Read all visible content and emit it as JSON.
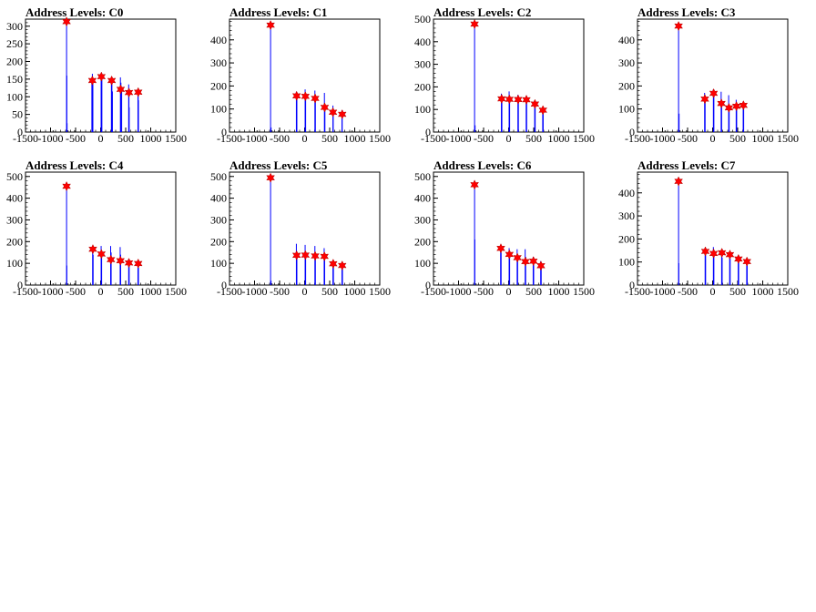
{
  "chart_data": [
    {
      "type": "histogram",
      "title": "Address Levels: C0",
      "xlim": [
        -1500,
        1500
      ],
      "ylim": [
        0,
        320
      ],
      "yticks": [
        0,
        50,
        100,
        150,
        200,
        250,
        300
      ],
      "xticks": [
        -1500,
        -1000,
        -500,
        0,
        500,
        1000,
        1500
      ],
      "xtick_labels": [
        "-1500",
        "-1000",
        "-500",
        "0",
        "500",
        "1000",
        "1500"
      ],
      "spikes": [
        {
          "x": -680,
          "y": 310
        },
        {
          "x": -675,
          "y": 160
        },
        {
          "x": -670,
          "y": 25
        },
        {
          "x": -175,
          "y": 150
        },
        {
          "x": -165,
          "y": 165
        },
        {
          "x": -155,
          "y": 145
        },
        {
          "x": 10,
          "y": 160
        },
        {
          "x": 15,
          "y": 125
        },
        {
          "x": 25,
          "y": 155
        },
        {
          "x": 215,
          "y": 150
        },
        {
          "x": 225,
          "y": 145
        },
        {
          "x": 235,
          "y": 115
        },
        {
          "x": 395,
          "y": 155
        },
        {
          "x": 405,
          "y": 140
        },
        {
          "x": 420,
          "y": 115
        },
        {
          "x": 560,
          "y": 135
        },
        {
          "x": 565,
          "y": 115
        },
        {
          "x": 570,
          "y": 70
        },
        {
          "x": 745,
          "y": 115
        },
        {
          "x": 750,
          "y": 110
        },
        {
          "x": 755,
          "y": 90
        }
      ],
      "peaks": [
        {
          "x": -680,
          "y": 313
        },
        {
          "x": -165,
          "y": 146
        },
        {
          "x": 15,
          "y": 157
        },
        {
          "x": 220,
          "y": 146
        },
        {
          "x": 400,
          "y": 121
        },
        {
          "x": 565,
          "y": 112
        },
        {
          "x": 750,
          "y": 113
        }
      ]
    },
    {
      "type": "histogram",
      "title": "Address Levels: C1",
      "xlim": [
        -1500,
        1500
      ],
      "ylim": [
        0,
        490
      ],
      "yticks": [
        0,
        100,
        200,
        300,
        400
      ],
      "xticks": [
        -1500,
        -1000,
        -500,
        0,
        500,
        1000,
        1500
      ],
      "xtick_labels": [
        "-1500",
        "-1000",
        "-500",
        "0",
        "500",
        "1000",
        "1500"
      ],
      "spikes": [
        {
          "x": -680,
          "y": 470
        },
        {
          "x": -670,
          "y": 20
        },
        {
          "x": -165,
          "y": 175
        },
        {
          "x": -155,
          "y": 150
        },
        {
          "x": 10,
          "y": 185
        },
        {
          "x": 20,
          "y": 160
        },
        {
          "x": 205,
          "y": 180
        },
        {
          "x": 215,
          "y": 150
        },
        {
          "x": 395,
          "y": 170
        },
        {
          "x": 405,
          "y": 120
        },
        {
          "x": 565,
          "y": 115
        },
        {
          "x": 570,
          "y": 90
        },
        {
          "x": 745,
          "y": 95
        },
        {
          "x": 750,
          "y": 80
        }
      ],
      "peaks": [
        {
          "x": -680,
          "y": 464
        },
        {
          "x": -160,
          "y": 157
        },
        {
          "x": 15,
          "y": 155
        },
        {
          "x": 210,
          "y": 146
        },
        {
          "x": 400,
          "y": 107
        },
        {
          "x": 565,
          "y": 86
        },
        {
          "x": 750,
          "y": 77
        }
      ]
    },
    {
      "type": "histogram",
      "title": "Address Levels: C2",
      "xlim": [
        -1500,
        1500
      ],
      "ylim": [
        0,
        500
      ],
      "yticks": [
        0,
        100,
        200,
        300,
        400,
        500
      ],
      "xticks": [
        -1500,
        -1000,
        -500,
        0,
        500,
        1000,
        1500
      ],
      "xtick_labels": [
        "-1500",
        "-1000",
        "-500",
        "0",
        "500",
        "1000",
        "1500"
      ],
      "spikes": [
        {
          "x": -680,
          "y": 490
        },
        {
          "x": -670,
          "y": 30
        },
        {
          "x": -145,
          "y": 170
        },
        {
          "x": -135,
          "y": 150
        },
        {
          "x": 10,
          "y": 180
        },
        {
          "x": 20,
          "y": 150
        },
        {
          "x": 185,
          "y": 165
        },
        {
          "x": 195,
          "y": 140
        },
        {
          "x": 350,
          "y": 160
        },
        {
          "x": 360,
          "y": 130
        },
        {
          "x": 520,
          "y": 140
        },
        {
          "x": 530,
          "y": 110
        },
        {
          "x": 680,
          "y": 110
        },
        {
          "x": 690,
          "y": 90
        }
      ],
      "peaks": [
        {
          "x": -680,
          "y": 478
        },
        {
          "x": -140,
          "y": 147
        },
        {
          "x": 15,
          "y": 145
        },
        {
          "x": 190,
          "y": 144
        },
        {
          "x": 355,
          "y": 143
        },
        {
          "x": 525,
          "y": 124
        },
        {
          "x": 685,
          "y": 97
        }
      ]
    },
    {
      "type": "histogram",
      "title": "Address Levels: C3",
      "xlim": [
        -1500,
        1500
      ],
      "ylim": [
        0,
        490
      ],
      "yticks": [
        0,
        100,
        200,
        300,
        400
      ],
      "xticks": [
        -1500,
        -1000,
        -500,
        0,
        500,
        1000,
        1500
      ],
      "xtick_labels": [
        "-1500",
        "-1000",
        "-500",
        "0",
        "500",
        "1000",
        "1500"
      ],
      "spikes": [
        {
          "x": -680,
          "y": 470
        },
        {
          "x": -670,
          "y": 80
        },
        {
          "x": -160,
          "y": 170
        },
        {
          "x": -150,
          "y": 140
        },
        {
          "x": 15,
          "y": 185
        },
        {
          "x": 25,
          "y": 160
        },
        {
          "x": 170,
          "y": 175
        },
        {
          "x": 180,
          "y": 140
        },
        {
          "x": 320,
          "y": 160
        },
        {
          "x": 330,
          "y": 120
        },
        {
          "x": 470,
          "y": 140
        },
        {
          "x": 480,
          "y": 110
        },
        {
          "x": 610,
          "y": 130
        },
        {
          "x": 620,
          "y": 100
        }
      ],
      "peaks": [
        {
          "x": -680,
          "y": 460
        },
        {
          "x": -155,
          "y": 143
        },
        {
          "x": 20,
          "y": 168
        },
        {
          "x": 175,
          "y": 124
        },
        {
          "x": 325,
          "y": 105
        },
        {
          "x": 475,
          "y": 112
        },
        {
          "x": 615,
          "y": 116
        }
      ]
    },
    {
      "type": "histogram",
      "title": "Address Levels: C4",
      "xlim": [
        -1500,
        1500
      ],
      "ylim": [
        0,
        520
      ],
      "yticks": [
        0,
        100,
        200,
        300,
        400,
        500
      ],
      "xticks": [
        -1500,
        -1000,
        -500,
        0,
        500,
        1000,
        1500
      ],
      "xtick_labels": [
        "-1500",
        "-1000",
        "-500",
        "0",
        "500",
        "1000",
        "1500"
      ],
      "spikes": [
        {
          "x": -680,
          "y": 470
        },
        {
          "x": -675,
          "y": 90
        },
        {
          "x": -160,
          "y": 170
        },
        {
          "x": -150,
          "y": 140
        },
        {
          "x": 10,
          "y": 180
        },
        {
          "x": 20,
          "y": 150
        },
        {
          "x": 200,
          "y": 180
        },
        {
          "x": 210,
          "y": 150
        },
        {
          "x": 390,
          "y": 175
        },
        {
          "x": 400,
          "y": 140
        },
        {
          "x": 560,
          "y": 120
        },
        {
          "x": 570,
          "y": 90
        },
        {
          "x": 745,
          "y": 105
        },
        {
          "x": 755,
          "y": 80
        }
      ],
      "peaks": [
        {
          "x": -680,
          "y": 455
        },
        {
          "x": -155,
          "y": 165
        },
        {
          "x": 15,
          "y": 143
        },
        {
          "x": 205,
          "y": 117
        },
        {
          "x": 395,
          "y": 112
        },
        {
          "x": 565,
          "y": 102
        },
        {
          "x": 750,
          "y": 99
        }
      ]
    },
    {
      "type": "histogram",
      "title": "Address Levels: C5",
      "xlim": [
        -1500,
        1500
      ],
      "ylim": [
        0,
        520
      ],
      "yticks": [
        0,
        100,
        200,
        300,
        400,
        500
      ],
      "xticks": [
        -1500,
        -1000,
        -500,
        0,
        500,
        1000,
        1500
      ],
      "xtick_labels": [
        "-1500",
        "-1000",
        "-500",
        "0",
        "500",
        "1000",
        "1500"
      ],
      "spikes": [
        {
          "x": -680,
          "y": 510
        },
        {
          "x": -670,
          "y": 20
        },
        {
          "x": -165,
          "y": 190
        },
        {
          "x": -155,
          "y": 150
        },
        {
          "x": 10,
          "y": 185
        },
        {
          "x": 20,
          "y": 150
        },
        {
          "x": 205,
          "y": 180
        },
        {
          "x": 215,
          "y": 140
        },
        {
          "x": 390,
          "y": 170
        },
        {
          "x": 400,
          "y": 130
        },
        {
          "x": 565,
          "y": 115
        },
        {
          "x": 575,
          "y": 90
        },
        {
          "x": 745,
          "y": 100
        },
        {
          "x": 755,
          "y": 80
        }
      ],
      "peaks": [
        {
          "x": -680,
          "y": 494
        },
        {
          "x": -160,
          "y": 137
        },
        {
          "x": 15,
          "y": 138
        },
        {
          "x": 210,
          "y": 134
        },
        {
          "x": 395,
          "y": 132
        },
        {
          "x": 570,
          "y": 98
        },
        {
          "x": 750,
          "y": 90
        }
      ]
    },
    {
      "type": "histogram",
      "title": "Address Levels: C6",
      "xlim": [
        -1500,
        1500
      ],
      "ylim": [
        0,
        520
      ],
      "yticks": [
        0,
        100,
        200,
        300,
        400,
        500
      ],
      "xticks": [
        -1500,
        -1000,
        -500,
        0,
        500,
        1000,
        1500
      ],
      "xtick_labels": [
        "-1500",
        "-1000",
        "-500",
        "0",
        "500",
        "1000",
        "1500"
      ],
      "spikes": [
        {
          "x": -680,
          "y": 480
        },
        {
          "x": -675,
          "y": 210
        },
        {
          "x": -160,
          "y": 185
        },
        {
          "x": -150,
          "y": 150
        },
        {
          "x": 10,
          "y": 170
        },
        {
          "x": 20,
          "y": 140
        },
        {
          "x": 170,
          "y": 165
        },
        {
          "x": 180,
          "y": 130
        },
        {
          "x": 330,
          "y": 165
        },
        {
          "x": 340,
          "y": 130
        },
        {
          "x": 490,
          "y": 130
        },
        {
          "x": 500,
          "y": 100
        },
        {
          "x": 640,
          "y": 110
        },
        {
          "x": 650,
          "y": 85
        }
      ],
      "peaks": [
        {
          "x": -680,
          "y": 462
        },
        {
          "x": -155,
          "y": 169
        },
        {
          "x": 15,
          "y": 141
        },
        {
          "x": 175,
          "y": 126
        },
        {
          "x": 335,
          "y": 108
        },
        {
          "x": 495,
          "y": 110
        },
        {
          "x": 645,
          "y": 89
        }
      ]
    },
    {
      "type": "histogram",
      "title": "Address Levels: C7",
      "xlim": [
        -1500,
        1500
      ],
      "ylim": [
        0,
        490
      ],
      "yticks": [
        0,
        100,
        200,
        300,
        400
      ],
      "xticks": [
        -1500,
        -1000,
        -500,
        0,
        500,
        1000,
        1500
      ],
      "xtick_labels": [
        "-1500",
        "-1000",
        "-500",
        "0",
        "500",
        "1000",
        "1500"
      ],
      "spikes": [
        {
          "x": -680,
          "y": 460
        },
        {
          "x": -675,
          "y": 95
        },
        {
          "x": -150,
          "y": 160
        },
        {
          "x": -140,
          "y": 130
        },
        {
          "x": 15,
          "y": 165
        },
        {
          "x": 25,
          "y": 140
        },
        {
          "x": 180,
          "y": 150
        },
        {
          "x": 190,
          "y": 120
        },
        {
          "x": 340,
          "y": 145
        },
        {
          "x": 350,
          "y": 115
        },
        {
          "x": 510,
          "y": 125
        },
        {
          "x": 520,
          "y": 100
        },
        {
          "x": 680,
          "y": 110
        },
        {
          "x": 690,
          "y": 90
        }
      ],
      "peaks": [
        {
          "x": -680,
          "y": 450
        },
        {
          "x": -145,
          "y": 146
        },
        {
          "x": 20,
          "y": 137
        },
        {
          "x": 185,
          "y": 140
        },
        {
          "x": 345,
          "y": 132
        },
        {
          "x": 515,
          "y": 113
        },
        {
          "x": 685,
          "y": 102
        }
      ]
    }
  ]
}
